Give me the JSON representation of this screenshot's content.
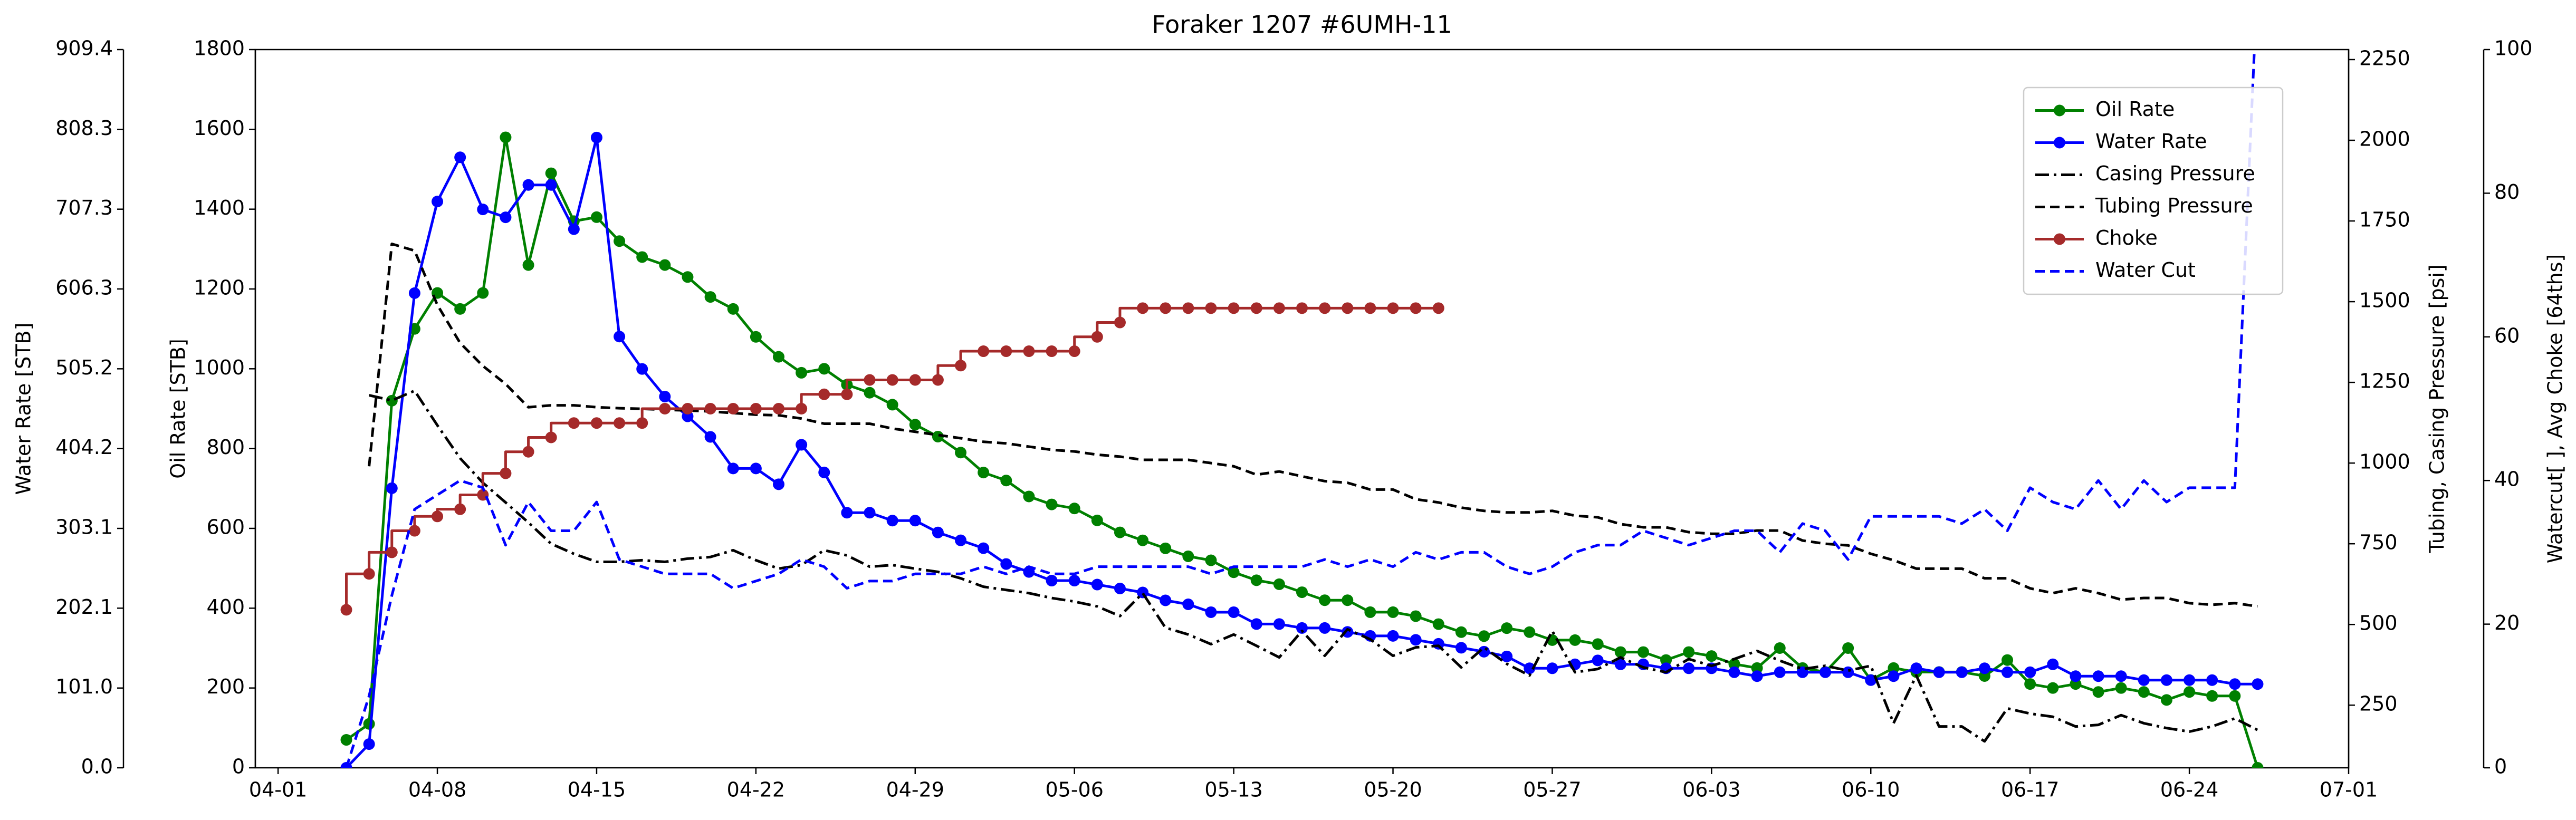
{
  "chart_data": {
    "type": "line",
    "title": "Foraker 1207 #6UMH-11",
    "x": [
      "04-04",
      "04-05",
      "04-06",
      "04-07",
      "04-08",
      "04-09",
      "04-10",
      "04-11",
      "04-12",
      "04-13",
      "04-14",
      "04-15",
      "04-16",
      "04-17",
      "04-18",
      "04-19",
      "04-20",
      "04-21",
      "04-22",
      "04-23",
      "04-24",
      "04-25",
      "04-26",
      "04-27",
      "04-28",
      "04-29",
      "04-30",
      "05-01",
      "05-02",
      "05-03",
      "05-04",
      "05-05",
      "05-06",
      "05-07",
      "05-08",
      "05-09",
      "05-10",
      "05-11",
      "05-12",
      "05-13",
      "05-14",
      "05-15",
      "05-16",
      "05-17",
      "05-18",
      "05-19",
      "05-20",
      "05-21",
      "05-22",
      "05-23",
      "05-24",
      "05-25",
      "05-26",
      "05-27",
      "05-28",
      "05-29",
      "05-30",
      "05-31",
      "06-01",
      "06-02",
      "06-03",
      "06-04",
      "06-05",
      "06-06",
      "06-07",
      "06-08",
      "06-09",
      "06-10",
      "06-11",
      "06-12",
      "06-13",
      "06-14",
      "06-15",
      "06-16",
      "06-17",
      "06-18",
      "06-19",
      "06-20",
      "06-21",
      "06-22",
      "06-23",
      "06-24",
      "06-25",
      "06-26",
      "06-27"
    ],
    "xlim": [
      "03-31",
      "07-01"
    ],
    "xticks": [
      "04-01",
      "04-08",
      "04-15",
      "04-22",
      "04-29",
      "05-06",
      "05-13",
      "05-20",
      "05-27",
      "06-03",
      "06-10",
      "06-17",
      "06-24",
      "07-01"
    ],
    "ylabel": "Oil Rate [STB]",
    "ylim": [
      0,
      1800
    ],
    "yticks": [
      0,
      200,
      400,
      600,
      800,
      1000,
      1200,
      1400,
      1600,
      1800
    ],
    "y4label": "Water Rate [STB]",
    "y4lim": [
      0,
      909.4
    ],
    "y4ticks": [
      {
        "value": 0,
        "label": "0.0"
      },
      {
        "value": 101,
        "label": "101.0"
      },
      202.1,
      303.1,
      404.2,
      505.2,
      606.3,
      707.3,
      808.3,
      909.4
    ],
    "y2label": "Tubing, Casing Pressure [psi]",
    "y2lim": [
      56,
      2281
    ],
    "y2ticks": [
      250,
      500,
      750,
      1000,
      1250,
      1500,
      1750,
      2000,
      2250
    ],
    "y3label": "Watercut[ ], Avg Choke [64ths]",
    "y3lim": [
      0,
      100
    ],
    "y3ticks": [
      0,
      20,
      40,
      60,
      80,
      100
    ],
    "legend": "upper right",
    "series": [
      {
        "name": "Oil Rate",
        "color": "#008000",
        "axis": "y",
        "marker": "o",
        "linestyle": "solid",
        "values": [
          70,
          110,
          920,
          1100,
          1190,
          1150,
          1190,
          1580,
          1260,
          1490,
          1370,
          1380,
          1320,
          1280,
          1260,
          1230,
          1180,
          1150,
          1080,
          1030,
          990,
          1000,
          960,
          940,
          910,
          860,
          830,
          790,
          740,
          720,
          680,
          660,
          650,
          620,
          590,
          570,
          550,
          530,
          520,
          490,
          470,
          460,
          440,
          420,
          420,
          390,
          390,
          380,
          360,
          340,
          330,
          350,
          340,
          320,
          320,
          310,
          290,
          290,
          270,
          290,
          280,
          260,
          250,
          300,
          250,
          240,
          300,
          220,
          250,
          240,
          240,
          240,
          230,
          270,
          210,
          200,
          210,
          190,
          200,
          190,
          170,
          190,
          180,
          180,
          0
        ]
      },
      {
        "name": "Water Rate",
        "color": "#0000ff",
        "axis": "y4",
        "marker": "o",
        "linestyle": "solid",
        "values": [
          0,
          30,
          354,
          601,
          717,
          773,
          707,
          697,
          738,
          738,
          682,
          798,
          546,
          505,
          470,
          445,
          419,
          379,
          379,
          359,
          409,
          374,
          323,
          323,
          313,
          313,
          298,
          288,
          278,
          258,
          248,
          237,
          237,
          232,
          227,
          222,
          212,
          207,
          197,
          197,
          182,
          182,
          177,
          177,
          172,
          167,
          167,
          162,
          157,
          152,
          147,
          141,
          126,
          126,
          131,
          136,
          131,
          131,
          126,
          126,
          126,
          121,
          116,
          121,
          121,
          121,
          121,
          111,
          116,
          126,
          121,
          121,
          126,
          121,
          121,
          131,
          116,
          116,
          116,
          111,
          111,
          111,
          111,
          106,
          106
        ]
      },
      {
        "name": "Casing Pressure",
        "color": "#000000",
        "axis": "y2",
        "linestyle": "dashdot",
        "values": [
          null,
          1210,
          1194,
          1224,
          1117,
          1015,
          939,
          878,
          816,
          750,
          719,
          694,
          694,
          699,
          694,
          704,
          709,
          730,
          699,
          673,
          684,
          730,
          714,
          679,
          684,
          673,
          663,
          643,
          617,
          607,
          597,
          582,
          571,
          556,
          526,
          597,
          490,
          469,
          439,
          469,
          434,
          398,
          480,
          403,
          485,
          454,
          403,
          429,
          434,
          367,
          429,
          378,
          342,
          480,
          352,
          362,
          398,
          367,
          352,
          393,
          372,
          393,
          418,
          388,
          362,
          372,
          357,
          372,
          194,
          342,
          184,
          184,
          138,
          240,
          224,
          214,
          184,
          189,
          219,
          194,
          179,
          168,
          184,
          209,
          173
        ]
      },
      {
        "name": "Tubing Pressure",
        "color": "#000000",
        "axis": "y2",
        "linestyle": "dashed",
        "values": [
          null,
          990,
          1679,
          1658,
          1490,
          1372,
          1301,
          1245,
          1173,
          1179,
          1179,
          1173,
          1170,
          1168,
          1165,
          1163,
          1160,
          1155,
          1150,
          1148,
          1138,
          1122,
          1122,
          1122,
          1107,
          1097,
          1087,
          1077,
          1066,
          1061,
          1051,
          1041,
          1036,
          1026,
          1020,
          1010,
          1010,
          1010,
          1000,
          990,
          964,
          974,
          959,
          944,
          939,
          918,
          918,
          888,
          878,
          862,
          852,
          847,
          847,
          852,
          837,
          832,
          811,
          801,
          801,
          786,
          781,
          781,
          791,
          791,
          760,
          750,
          745,
          719,
          699,
          673,
          673,
          673,
          643,
          643,
          612,
          597,
          612,
          597,
          577,
          582,
          582,
          566,
          561,
          566,
          556
        ]
      },
      {
        "name": "Choke",
        "color": "#a52a2a",
        "axis": "y3",
        "marker": "o",
        "linestyle": "solid",
        "drawstyle": "steps-pre",
        "values": [
          22,
          27,
          30,
          33,
          35,
          36,
          38,
          41,
          44,
          46,
          48,
          48,
          48,
          48,
          50,
          50,
          50,
          50,
          50,
          50,
          50,
          52,
          52,
          54,
          54,
          54,
          54,
          56,
          58,
          58,
          58,
          58,
          58,
          60,
          62,
          64,
          64,
          64,
          64,
          64,
          64,
          64,
          64,
          64,
          64,
          64,
          64,
          64,
          64,
          null,
          null,
          null,
          null,
          null,
          null,
          null,
          null,
          null,
          null,
          null,
          null,
          null,
          null,
          null,
          null,
          null,
          null,
          null,
          null,
          null,
          null,
          null,
          null,
          null,
          null,
          null,
          null,
          null,
          null,
          null,
          null,
          null,
          null,
          null,
          null
        ]
      },
      {
        "name": "Water Cut",
        "color": "#0000ff",
        "axis": "y3",
        "linestyle": "dashed",
        "values": [
          0,
          10,
          24,
          36,
          38,
          40,
          39,
          31,
          37,
          33,
          33,
          37,
          29,
          28,
          27,
          27,
          27,
          25,
          26,
          27,
          29,
          28,
          25,
          26,
          26,
          27,
          27,
          27,
          28,
          27,
          28,
          27,
          27,
          28,
          28,
          28,
          28,
          28,
          27,
          28,
          28,
          28,
          28,
          29,
          28,
          29,
          28,
          30,
          29,
          30,
          30,
          28,
          27,
          28,
          30,
          31,
          31,
          33,
          32,
          31,
          32,
          33,
          33,
          30,
          34,
          33,
          29,
          35,
          35,
          35,
          35,
          34,
          36,
          33,
          39,
          37,
          36,
          40,
          36,
          40,
          37,
          39,
          39,
          39,
          110
        ]
      }
    ]
  }
}
